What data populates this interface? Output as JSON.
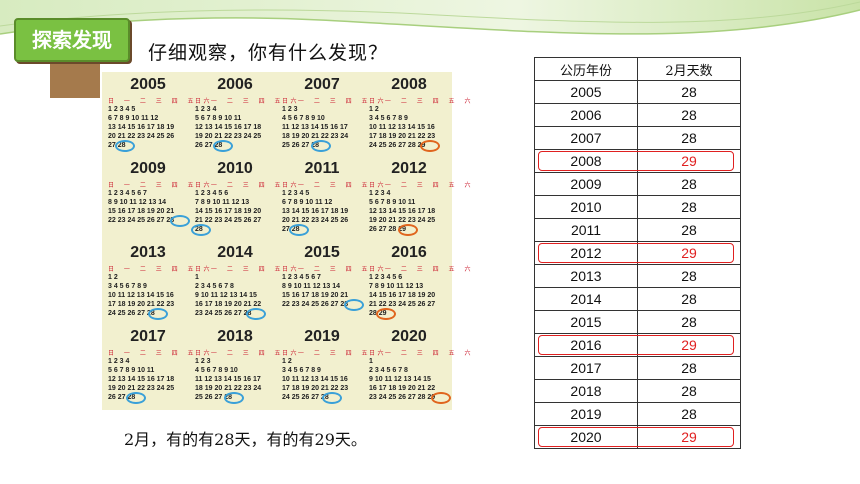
{
  "section_tag": "探索发现",
  "prompt": "仔细观察，你有什么发现？",
  "calendar_header": "日 一 二 三 四 五 六",
  "calendars": [
    {
      "year": "2005",
      "rows": [
        "  1 2 3 4 5",
        "6 7 8 9 10 11 12",
        "13 14 15 16 17 18 19",
        "20 21 22 23 24 25 26",
        "27 28"
      ],
      "mark": "28",
      "leap": false
    },
    {
      "year": "2006",
      "rows": [
        "    1 2 3 4",
        "5 6 7 8 9 10 11",
        "12 13 14 15 16 17 18",
        "19 20 21 22 23 24 25",
        "26 27 28"
      ],
      "mark": "28",
      "leap": false
    },
    {
      "year": "2007",
      "rows": [
        "      1 2 3",
        "4 5 6 7 8 9 10",
        "11 12 13 14 15 16 17",
        "18 19 20 21 22 23 24",
        "25 26 27 28"
      ],
      "mark": "28",
      "leap": false
    },
    {
      "year": "2008",
      "rows": [
        "        1 2",
        "3 4 5 6 7 8 9",
        "10 11 12 13 14 15 16",
        "17 18 19 20 21 22 23",
        "24 25 26 27 28 29"
      ],
      "mark": "29",
      "leap": true
    },
    {
      "year": "2009",
      "rows": [
        "1 2 3 4 5 6 7",
        "8 9 10 11 12 13 14",
        "15 16 17 18 19 20 21",
        "22 23 24 25 26 27 28"
      ],
      "mark": "28",
      "leap": false
    },
    {
      "year": "2010",
      "rows": [
        "  1 2 3 4 5 6",
        "7 8 9 10 11 12 13",
        "14 15 16 17 18 19 20",
        "21 22 23 24 25 26 27",
        "28"
      ],
      "mark": "28",
      "leap": false
    },
    {
      "year": "2011",
      "rows": [
        "    1 2 3 4 5",
        "6 7 8 9 10 11 12",
        "13 14 15 16 17 18 19",
        "20 21 22 23 24 25 26",
        "27 28"
      ],
      "mark": "28",
      "leap": false
    },
    {
      "year": "2012",
      "rows": [
        "      1 2 3 4",
        "5 6 7 8 9 10 11",
        "12 13 14 15 16 17 18",
        "19 20 21 22 23 24 25",
        "26 27 28 29"
      ],
      "mark": "29",
      "leap": true
    },
    {
      "year": "2013",
      "rows": [
        "          1 2",
        "3 4 5 6 7 8 9",
        "10 11 12 13 14 15 16",
        "17 18 19 20 21 22 23",
        "24 25 26 27 28"
      ],
      "mark": "28",
      "leap": false
    },
    {
      "year": "2014",
      "rows": [
        "          1",
        "2 3 4 5 6 7 8",
        "9 10 11 12 13 14 15",
        "16 17 18 19 20 21 22",
        "23 24 25 26 27 28"
      ],
      "mark": "28",
      "leap": false
    },
    {
      "year": "2015",
      "rows": [
        "1 2 3 4 5 6 7",
        "8 9 10 11 12 13 14",
        "15 16 17 18 19 20 21",
        "22 23 24 25 26 27 28"
      ],
      "mark": "28",
      "leap": false
    },
    {
      "year": "2016",
      "rows": [
        "    1 2 3 4 5 6",
        "7 8 9 10 11 12 13",
        "14 15 16 17 18 19 20",
        "21 22 23 24 25 26 27",
        "28 29"
      ],
      "mark": "29",
      "leap": true
    },
    {
      "year": "2017",
      "rows": [
        "      1 2 3 4",
        "5 6 7 8 9 10 11",
        "12 13 14 15 16 17 18",
        "19 20 21 22 23 24 25",
        "26 27 28"
      ],
      "mark": "28",
      "leap": false
    },
    {
      "year": "2018",
      "rows": [
        "        1 2 3",
        "4 5 6 7 8 9 10",
        "11 12 13 14 15 16 17",
        "18 19 20 21 22 23 24",
        "25 26 27 28"
      ],
      "mark": "28",
      "leap": false
    },
    {
      "year": "2019",
      "rows": [
        "          1 2",
        "3 4 5 6 7 8 9",
        "10 11 12 13 14 15 16",
        "17 18 19 20 21 22 23",
        "24 25 26 27 28"
      ],
      "mark": "28",
      "leap": false
    },
    {
      "year": "2020",
      "rows": [
        "            1",
        "2 3 4 5 6 7 8",
        "9 10 11 12 13 14 15",
        "16 17 18 19 20 21 22",
        "23 24 25 26 27 28 29"
      ],
      "mark": "29",
      "leap": true
    }
  ],
  "caption": "2月，有的有28天，有的有29天。",
  "table": {
    "headers": [
      "公历年份",
      "2月天数"
    ],
    "rows": [
      {
        "year": "2005",
        "days": "28",
        "leap": false
      },
      {
        "year": "2006",
        "days": "28",
        "leap": false
      },
      {
        "year": "2007",
        "days": "28",
        "leap": false
      },
      {
        "year": "2008",
        "days": "29",
        "leap": true
      },
      {
        "year": "2009",
        "days": "28",
        "leap": false
      },
      {
        "year": "2010",
        "days": "28",
        "leap": false
      },
      {
        "year": "2011",
        "days": "28",
        "leap": false
      },
      {
        "year": "2012",
        "days": "29",
        "leap": true
      },
      {
        "year": "2013",
        "days": "28",
        "leap": false
      },
      {
        "year": "2014",
        "days": "28",
        "leap": false
      },
      {
        "year": "2015",
        "days": "28",
        "leap": false
      },
      {
        "year": "2016",
        "days": "29",
        "leap": true
      },
      {
        "year": "2017",
        "days": "28",
        "leap": false
      },
      {
        "year": "2018",
        "days": "28",
        "leap": false
      },
      {
        "year": "2019",
        "days": "28",
        "leap": false
      },
      {
        "year": "2020",
        "days": "29",
        "leap": true
      }
    ]
  },
  "colors": {
    "common_ring": "#3aa0d8",
    "leap_ring": "#e0651e",
    "highlight": "#e02020",
    "accent": "#7ac142"
  }
}
